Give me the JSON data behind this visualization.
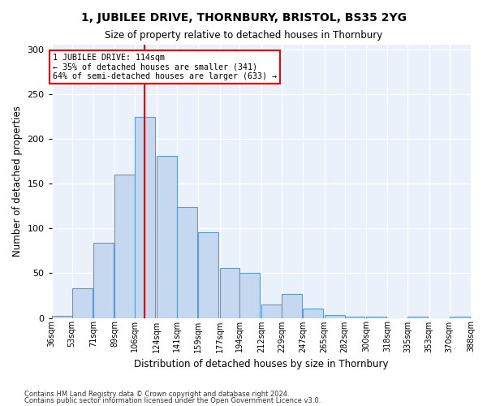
{
  "title": "1, JUBILEE DRIVE, THORNBURY, BRISTOL, BS35 2YG",
  "subtitle": "Size of property relative to detached houses in Thornbury",
  "xlabel": "Distribution of detached houses by size in Thornbury",
  "ylabel": "Number of detached properties",
  "footnote1": "Contains HM Land Registry data © Crown copyright and database right 2024.",
  "footnote2": "Contains public sector information licensed under the Open Government Licence v3.0.",
  "bar_color": "#c5d8f0",
  "bar_edge_color": "#5b9bd5",
  "background_color": "#eaf1fb",
  "grid_color": "#ffffff",
  "red_line_x": 114,
  "annotation_title": "1 JUBILEE DRIVE: 114sqm",
  "annotation_line1": "← 35% of detached houses are smaller (341)",
  "annotation_line2": "64% of semi-detached houses are larger (633) →",
  "bin_labels": [
    "36sqm",
    "53sqm",
    "71sqm",
    "89sqm",
    "106sqm",
    "124sqm",
    "141sqm",
    "159sqm",
    "177sqm",
    "194sqm",
    "212sqm",
    "229sqm",
    "247sqm",
    "265sqm",
    "282sqm",
    "300sqm",
    "318sqm",
    "335sqm",
    "353sqm",
    "370sqm",
    "388sqm"
  ],
  "bar_centers": [
    36,
    53,
    71,
    89,
    106,
    124,
    141,
    159,
    177,
    194,
    212,
    229,
    247,
    265,
    282,
    300,
    318,
    335,
    353,
    370
  ],
  "bar_heights": [
    2,
    33,
    84,
    160,
    224,
    181,
    124,
    96,
    56,
    50,
    15,
    27,
    10,
    3,
    1,
    1,
    0,
    1,
    0,
    1
  ],
  "bin_width": 17,
  "xlim_left": 36,
  "xlim_right": 388,
  "ylim": [
    0,
    305
  ],
  "yticks": [
    0,
    50,
    100,
    150,
    200,
    250,
    300
  ]
}
